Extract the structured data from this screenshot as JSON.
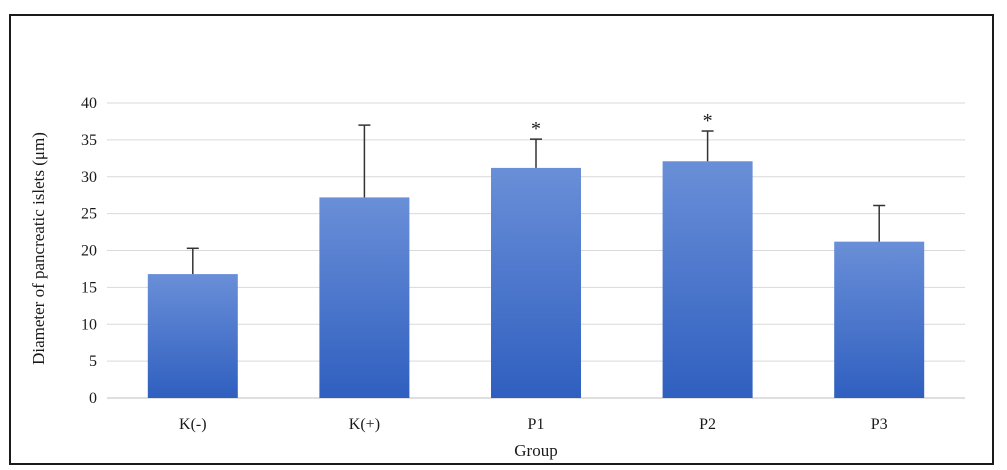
{
  "chart_data": {
    "type": "bar",
    "title": "",
    "xlabel": "Group",
    "ylabel": "Diameter of pancreatic islets (μm)",
    "categories": [
      "K(-)",
      "K(+)",
      "P1",
      "P2",
      "P3"
    ],
    "values": [
      16.8,
      27.2,
      31.2,
      32.1,
      21.2
    ],
    "errors": [
      3.5,
      9.8,
      3.9,
      4.1,
      4.9
    ],
    "annotations": [
      "",
      "",
      "*",
      "*",
      ""
    ],
    "ylim": [
      0,
      40
    ],
    "yticks": [
      0,
      5,
      10,
      15,
      20,
      25,
      30,
      35,
      40
    ],
    "grid": true,
    "legend": "none",
    "colors": {
      "bar_top": "#6a8fd8",
      "bar_bottom": "#2f5fbf",
      "grid": "#d9d9d9",
      "axis": "#bfbfbf",
      "error": "#333333"
    }
  }
}
